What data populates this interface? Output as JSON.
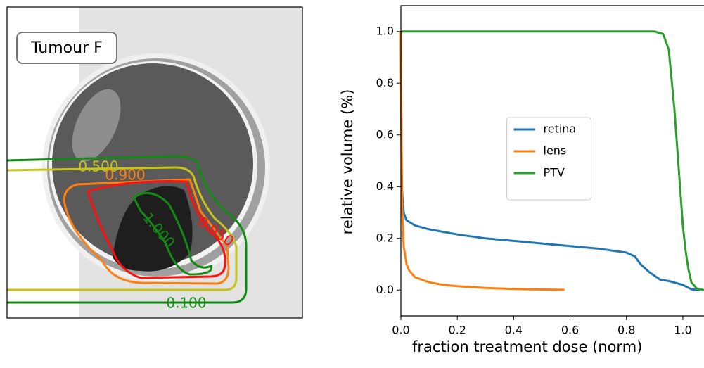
{
  "chart_data": [
    {
      "type": "contour",
      "label": "Tumour F",
      "contour_labels": [
        "0.500",
        "0.900",
        "0.950",
        "1.000",
        "0.100"
      ]
    },
    {
      "type": "line",
      "xlabel": "fraction treatment dose (norm)",
      "ylabel": "relative volume (%)",
      "xlim": [
        0,
        1.075
      ],
      "ylim": [
        -0.1,
        1.1
      ],
      "xticks": [
        {
          "value": 0,
          "label": "0.0"
        },
        0.2,
        0.4,
        0.6,
        0.8,
        {
          "value": 1,
          "label": "1.0"
        }
      ],
      "yticks": [
        {
          "value": 0,
          "label": "0.0"
        },
        0.2,
        0.4,
        0.6,
        0.8,
        {
          "value": 1,
          "label": "1.0"
        }
      ],
      "legend": "center",
      "series": [
        {
          "name": "retina",
          "color": "#1f77b4",
          "x": [
            0,
            0.003,
            0.01,
            0.02,
            0.05,
            0.1,
            0.2,
            0.3,
            0.4,
            0.5,
            0.6,
            0.7,
            0.8,
            0.83,
            0.85,
            0.88,
            0.92,
            0.95,
            1.0,
            1.03,
            1.06
          ],
          "values": [
            1.0,
            0.4,
            0.3,
            0.27,
            0.25,
            0.235,
            0.215,
            0.2,
            0.19,
            0.18,
            0.17,
            0.16,
            0.145,
            0.13,
            0.1,
            0.07,
            0.04,
            0.035,
            0.02,
            0.003,
            0.0
          ]
        },
        {
          "name": "lens",
          "color": "#ff7f0e",
          "x": [
            0,
            0.002,
            0.005,
            0.01,
            0.02,
            0.03,
            0.05,
            0.1,
            0.15,
            0.2,
            0.3,
            0.4,
            0.5,
            0.58
          ],
          "values": [
            1.0,
            0.6,
            0.3,
            0.17,
            0.1,
            0.075,
            0.05,
            0.03,
            0.02,
            0.015,
            0.008,
            0.004,
            0.002,
            0.001
          ]
        },
        {
          "name": "PTV",
          "color": "#2ca02c",
          "x": [
            0,
            0.9,
            0.93,
            0.95,
            0.97,
            0.99,
            1.0,
            1.01,
            1.02,
            1.03,
            1.05,
            1.075
          ],
          "values": [
            1,
            1,
            0.99,
            0.93,
            0.7,
            0.4,
            0.25,
            0.15,
            0.08,
            0.03,
            0.005,
            0
          ]
        }
      ]
    }
  ]
}
